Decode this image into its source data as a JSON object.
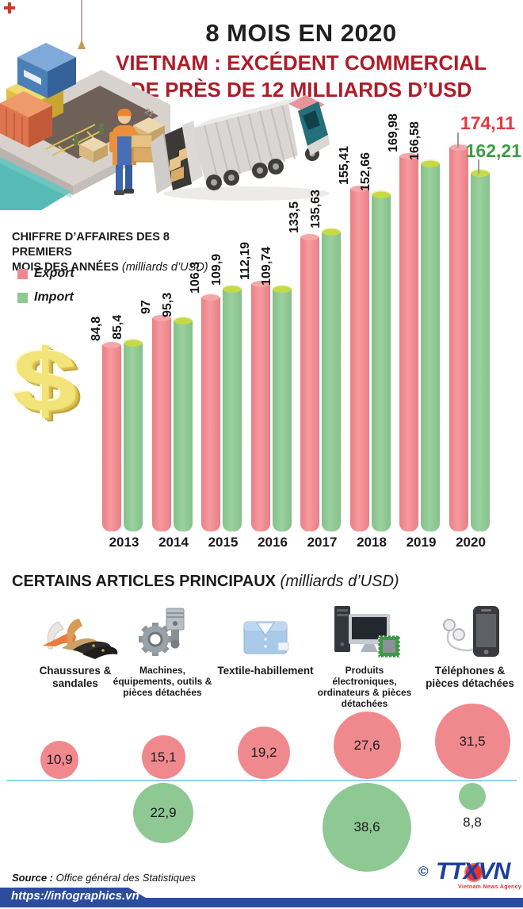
{
  "header": {
    "title": "8 MOIS EN 2020",
    "subtitle_line1": "VIETNAM : EXCÉDENT COMMERCIAL",
    "subtitle_line2": "DE PRÈS DE 12 MILLIARDS D’USD"
  },
  "chart_data": [
    {
      "type": "bar",
      "title": "CHIFFRE D’AFFAIRES DES 8 PREMIERS MOIS DES ANNÉES",
      "title_line1": "CHIFFRE D’AFFAIRES DES 8 PREMIERS",
      "title_line2": "MOIS DES ANNÉES",
      "unit": "(milliards d’USD)",
      "categories": [
        "2013",
        "2014",
        "2015",
        "2016",
        "2017",
        "2018",
        "2019",
        "2020"
      ],
      "series": [
        {
          "name": "Export",
          "color": "#f0898e",
          "values": [
            84.8,
            97,
            106.3,
            112.19,
            133.5,
            155.41,
            169.98,
            174.11
          ],
          "labels": [
            "84,8",
            "97",
            "106,3",
            "112,19",
            "133,5",
            "155,41",
            "169,98",
            "174,11"
          ]
        },
        {
          "name": "Import",
          "color": "#8ec893",
          "values": [
            85.4,
            95.3,
            109.9,
            109.74,
            135.63,
            152.66,
            166.58,
            162.21
          ],
          "labels": [
            "85,4",
            "95,3",
            "109,9",
            "109,74",
            "135,63",
            "152,66",
            "166,58",
            "162,21"
          ]
        }
      ],
      "ylim": [
        0,
        180
      ],
      "grid": false,
      "legend_position": "upper-left",
      "highlight_colors": {
        "export_2020": "#e23b43",
        "import_2020": "#3f9b46"
      }
    },
    {
      "type": "bubble",
      "title": "CERTAINS ARTICLES PRINCIPAUX",
      "unit": "(milliards d’USD)",
      "items": [
        {
          "label": "Chaussures & sandales",
          "icon": "shoes-icon",
          "export": 10.9,
          "export_label": "10,9",
          "import": null,
          "import_label": null
        },
        {
          "label": "Machines, équipements, outils & pièces détachées",
          "icon": "machines-icon",
          "export": 15.1,
          "export_label": "15,1",
          "import": 22.9,
          "import_label": "22,9"
        },
        {
          "label": "Textile-habillement",
          "icon": "textile-icon",
          "export": 19.2,
          "export_label": "19,2",
          "import": null,
          "import_label": null
        },
        {
          "label": "Produits électroniques, ordinateurs & pièces détachées",
          "icon": "electronics-icon",
          "export": 27.6,
          "export_label": "27,6",
          "import": 38.6,
          "import_label": "38,6"
        },
        {
          "label": "Téléphones & pièces détachées",
          "icon": "phone-icon",
          "export": 31.5,
          "export_label": "31,5",
          "import": 8.8,
          "import_label": "8,8"
        }
      ]
    }
  ],
  "footer": {
    "source_label": "Source :",
    "source_text": "Office général des Statistiques",
    "url": "https://infographics.vn",
    "copyright": "©",
    "logo_ttx": "TTX",
    "logo_vn": "VN",
    "logo_subtext": "Vietnam News Agency"
  },
  "colors": {
    "export": "#f0898e",
    "import": "#8ec893",
    "import_top": "#c5da45",
    "title_red": "#ae1c28",
    "highlight_red": "#e23b43",
    "highlight_green": "#3f9b46",
    "divider_blue": "#8ed2ea",
    "footer_blue": "#2c4c9e"
  }
}
